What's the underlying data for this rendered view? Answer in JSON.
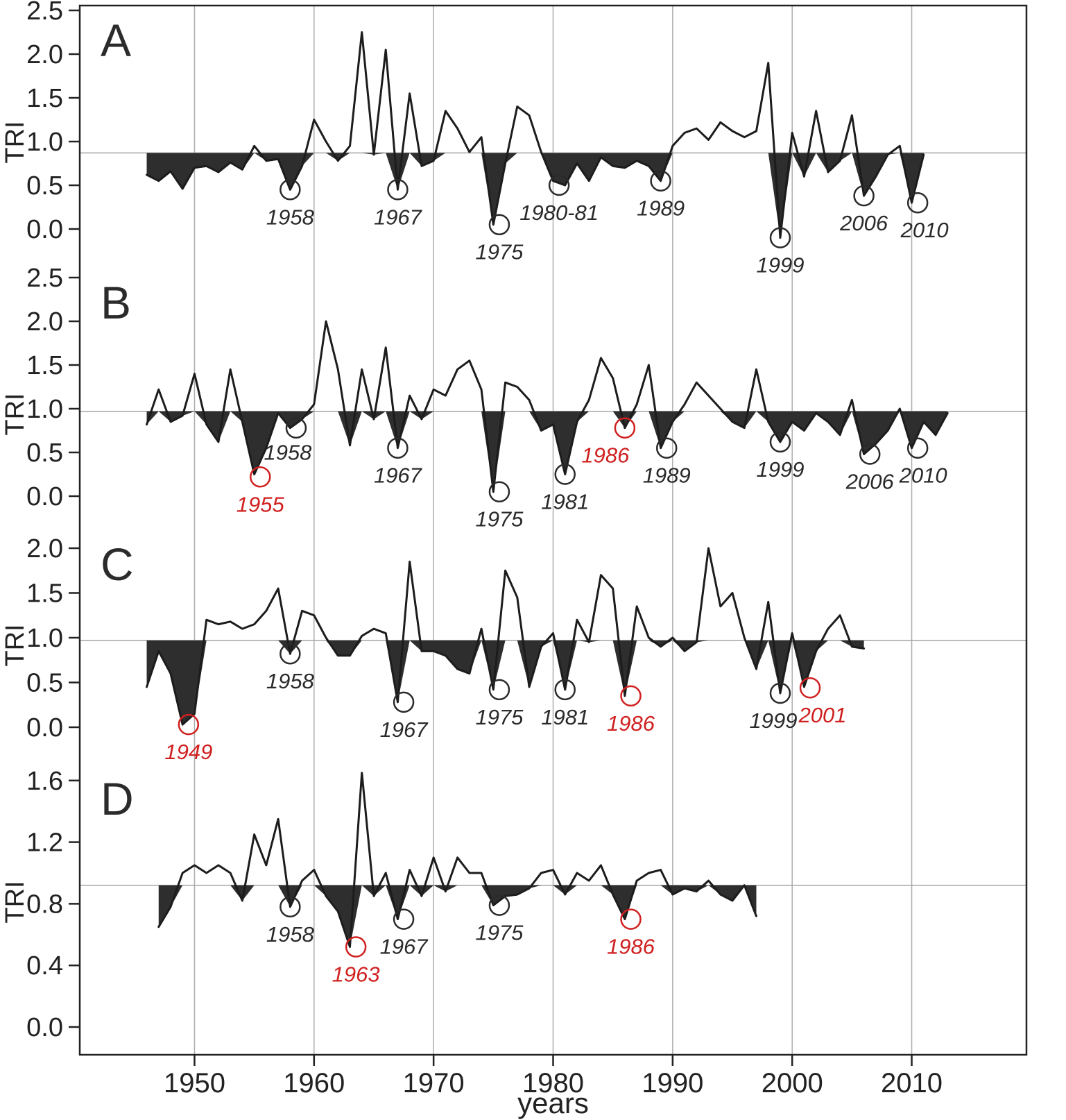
{
  "figure": {
    "xlabel": "years",
    "x_ticks": [
      1950,
      1960,
      1970,
      1980,
      1990,
      2000,
      2010
    ],
    "x_range": [
      1940.4,
      2019.6
    ],
    "background": "#ffffff",
    "line_color": "#1c1c1c",
    "fill_color": "#2e2e2e",
    "grid_color": "#adadad",
    "threshold_color": "#a5a5a5",
    "axis_color": "#222222",
    "annotation_red": "#d02020",
    "annotation_black": "#2a2a2a"
  },
  "chart_data": [
    {
      "type": "area",
      "panel": "A",
      "ylabel": "TRI",
      "ylim": [
        0.0,
        2.5
      ],
      "y_ticks": [
        0.0,
        0.5,
        1.0,
        1.5,
        2.0,
        2.5
      ],
      "threshold": 0.87,
      "year_start": 1946,
      "values": [
        0.62,
        0.55,
        0.66,
        0.46,
        0.7,
        0.72,
        0.65,
        0.76,
        0.68,
        0.95,
        0.78,
        0.8,
        0.45,
        0.72,
        1.25,
        1.0,
        0.78,
        0.95,
        2.25,
        0.85,
        2.05,
        0.45,
        1.55,
        0.72,
        0.78,
        1.35,
        1.15,
        0.88,
        1.05,
        0.05,
        0.75,
        1.4,
        1.3,
        0.88,
        0.55,
        0.5,
        0.75,
        0.55,
        0.82,
        0.72,
        0.7,
        0.78,
        0.72,
        0.55,
        0.95,
        1.1,
        1.15,
        1.02,
        1.22,
        1.12,
        1.05,
        1.12,
        1.9,
        -0.1,
        1.1,
        0.6,
        1.35,
        0.65,
        0.78,
        1.3,
        0.38,
        0.6,
        0.85,
        0.95,
        0.3,
        0.85
      ],
      "annotations": [
        {
          "label": "1958",
          "year": 1958,
          "value": 0.45,
          "color": "black"
        },
        {
          "label": "1967",
          "year": 1967,
          "value": 0.45,
          "color": "black"
        },
        {
          "label": "1975",
          "year": 1975.5,
          "value": 0.05,
          "color": "black"
        },
        {
          "label": "1980-81",
          "year": 1980.5,
          "value": 0.5,
          "color": "black"
        },
        {
          "label": "1989",
          "year": 1989,
          "value": 0.55,
          "color": "black"
        },
        {
          "label": "1999",
          "year": 1999,
          "value": -0.1,
          "color": "black"
        },
        {
          "label": "2006",
          "year": 2006,
          "value": 0.38,
          "color": "black"
        },
        {
          "label": "2010",
          "year": 2010.5,
          "value": 0.3,
          "color": "black",
          "dx": 10
        }
      ]
    },
    {
      "type": "area",
      "panel": "B",
      "ylabel": "TRI",
      "ylim": [
        0.0,
        2.5
      ],
      "y_ticks": [
        0.0,
        0.5,
        1.0,
        1.5,
        2.0,
        2.5
      ],
      "threshold": 0.97,
      "year_start": 1946,
      "values": [
        0.82,
        1.22,
        0.85,
        0.92,
        1.4,
        0.82,
        0.62,
        1.45,
        0.85,
        0.25,
        0.55,
        0.95,
        0.78,
        0.88,
        1.05,
        2.0,
        1.45,
        0.58,
        1.45,
        0.88,
        1.7,
        0.55,
        1.15,
        0.88,
        1.22,
        1.15,
        1.45,
        1.55,
        1.22,
        0.05,
        1.3,
        1.25,
        1.1,
        0.75,
        0.82,
        0.25,
        0.85,
        1.1,
        1.58,
        1.35,
        0.78,
        1.05,
        1.5,
        0.55,
        0.85,
        1.05,
        1.3,
        1.15,
        1.0,
        0.85,
        0.78,
        1.45,
        0.85,
        0.62,
        0.85,
        0.75,
        0.95,
        0.85,
        0.7,
        1.1,
        0.48,
        0.6,
        0.75,
        1.0,
        0.55,
        0.85,
        0.7,
        0.95
      ],
      "annotations": [
        {
          "label": "1955",
          "year": 1955.5,
          "value": 0.22,
          "color": "red"
        },
        {
          "label": "1958",
          "year": 1958.5,
          "value": 0.78,
          "color": "black",
          "dx": -12,
          "dy": -4
        },
        {
          "label": "1967",
          "year": 1967,
          "value": 0.55,
          "color": "black"
        },
        {
          "label": "1975",
          "year": 1975.5,
          "value": 0.05,
          "color": "black"
        },
        {
          "label": "1981",
          "year": 1981,
          "value": 0.25,
          "color": "black"
        },
        {
          "label": "1986",
          "year": 1986,
          "value": 0.78,
          "color": "red",
          "dx": -28
        },
        {
          "label": "1989",
          "year": 1989.5,
          "value": 0.55,
          "color": "black"
        },
        {
          "label": "1999",
          "year": 1999,
          "value": 0.62,
          "color": "black"
        },
        {
          "label": "2006",
          "year": 2006.5,
          "value": 0.48,
          "color": "black"
        },
        {
          "label": "2010",
          "year": 2010.5,
          "value": 0.55,
          "color": "black",
          "dx": 8
        }
      ]
    },
    {
      "type": "area",
      "panel": "C",
      "ylabel": "TRI",
      "ylim": [
        0.0,
        2.0
      ],
      "y_ticks": [
        0.0,
        0.5,
        1.0,
        1.5,
        2.0
      ],
      "threshold": 0.97,
      "year_start": 1946,
      "values": [
        0.45,
        0.85,
        0.6,
        0.03,
        0.15,
        1.2,
        1.15,
        1.18,
        1.1,
        1.15,
        1.3,
        1.55,
        0.82,
        1.3,
        1.25,
        1.0,
        0.8,
        0.8,
        1.02,
        1.1,
        1.05,
        0.28,
        1.85,
        0.85,
        0.85,
        0.8,
        0.65,
        0.6,
        1.1,
        0.42,
        1.75,
        1.45,
        0.45,
        0.9,
        1.05,
        0.42,
        1.2,
        0.95,
        1.7,
        1.55,
        0.35,
        1.35,
        1.0,
        0.9,
        1.0,
        0.85,
        0.95,
        2.0,
        1.35,
        1.5,
        1.0,
        0.65,
        1.4,
        0.38,
        1.05,
        0.45,
        0.85,
        1.1,
        1.25,
        0.9,
        0.88
      ],
      "annotations": [
        {
          "label": "1949",
          "year": 1949.5,
          "value": 0.03,
          "color": "red"
        },
        {
          "label": "1958",
          "year": 1958,
          "value": 0.82,
          "color": "black"
        },
        {
          "label": "1967",
          "year": 1967.5,
          "value": 0.28,
          "color": "black"
        },
        {
          "label": "1975",
          "year": 1975.5,
          "value": 0.42,
          "color": "black"
        },
        {
          "label": "1981",
          "year": 1981,
          "value": 0.42,
          "color": "black"
        },
        {
          "label": "1986",
          "year": 1986.5,
          "value": 0.35,
          "color": "red"
        },
        {
          "label": "1999",
          "year": 1999,
          "value": 0.38,
          "color": "black",
          "dx": -10
        },
        {
          "label": "2001",
          "year": 2001.5,
          "value": 0.44,
          "color": "red",
          "dx": 18
        }
      ]
    },
    {
      "type": "area",
      "panel": "D",
      "ylabel": "TRI",
      "ylim": [
        0.0,
        1.6
      ],
      "y_ticks": [
        0.0,
        0.4,
        0.8,
        1.2,
        1.6
      ],
      "threshold": 0.92,
      "year_start": 1947,
      "values": [
        0.65,
        0.78,
        1.0,
        1.05,
        1.0,
        1.05,
        1.0,
        0.82,
        1.25,
        1.05,
        1.35,
        0.78,
        0.95,
        1.02,
        0.85,
        0.75,
        0.52,
        1.65,
        0.85,
        1.0,
        0.7,
        1.02,
        0.85,
        1.1,
        0.88,
        1.1,
        1.0,
        1.0,
        0.79,
        0.85,
        0.86,
        0.9,
        1.0,
        1.02,
        0.86,
        1.0,
        0.95,
        1.05,
        0.86,
        0.7,
        0.95,
        1.0,
        1.02,
        0.86,
        0.9,
        0.88,
        0.95,
        0.86,
        0.82,
        0.92,
        0.72
      ],
      "annotations": [
        {
          "label": "1958",
          "year": 1958,
          "value": 0.78,
          "color": "black"
        },
        {
          "label": "1963",
          "year": 1963.5,
          "value": 0.52,
          "color": "red"
        },
        {
          "label": "1967",
          "year": 1967.5,
          "value": 0.7,
          "color": "black"
        },
        {
          "label": "1975",
          "year": 1975.5,
          "value": 0.79,
          "color": "black"
        },
        {
          "label": "1986",
          "year": 1986.5,
          "value": 0.7,
          "color": "red"
        }
      ]
    }
  ]
}
